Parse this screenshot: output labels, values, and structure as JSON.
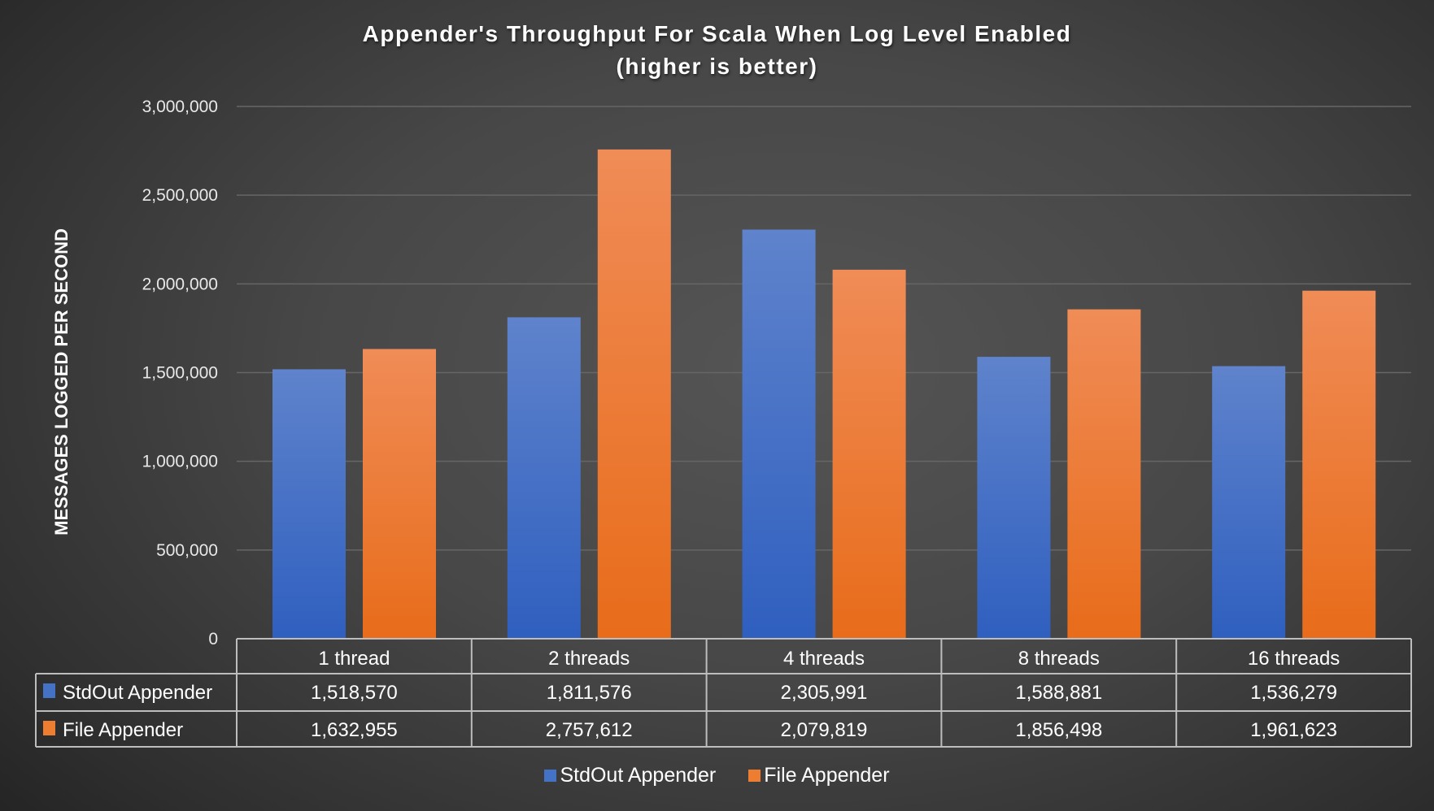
{
  "chart_data": {
    "type": "bar",
    "title": "Appender's Throughput For Scala When Log Level Enabled",
    "subtitle": "(higher is better)",
    "xlabel": "",
    "ylabel": "MESSAGES LOGGED PER SECOND",
    "ylim": [
      0,
      3000000
    ],
    "yticks": [
      "0",
      "500,000",
      "1,000,000",
      "1,500,000",
      "2,000,000",
      "2,500,000",
      "3,000,000"
    ],
    "ytick_values": [
      0,
      500000,
      1000000,
      1500000,
      2000000,
      2500000,
      3000000
    ],
    "grid": true,
    "legend": "bottom",
    "data_table": true,
    "categories": [
      "1 thread",
      "2 threads",
      "4 threads",
      "8 threads",
      "16 threads"
    ],
    "series": [
      {
        "name": "StdOut Appender",
        "color": "#4472c4",
        "values": [
          1518570,
          1811576,
          2305991,
          1588881,
          1536279
        ],
        "labels": [
          "1,518,570",
          "1,811,576",
          "2,305,991",
          "1,588,881",
          "1,536,279"
        ]
      },
      {
        "name": "File Appender",
        "color": "#ed7d31",
        "values": [
          1632955,
          2757612,
          2079819,
          1856498,
          1961623
        ],
        "labels": [
          "1,632,955",
          "2,757,612",
          "2,079,819",
          "1,856,498",
          "1,961,623"
        ]
      }
    ]
  }
}
